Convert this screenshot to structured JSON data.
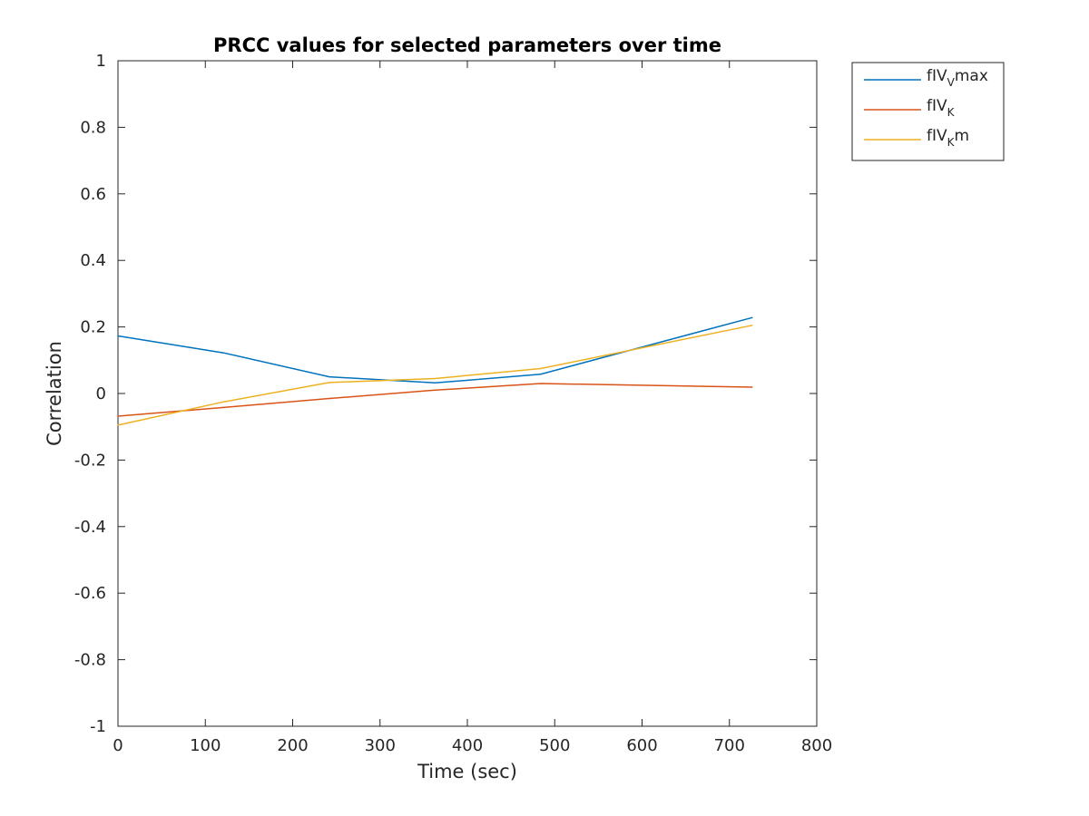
{
  "chart_data": {
    "type": "line",
    "title": "PRCC values for selected parameters over time",
    "xlabel": "Time (sec)",
    "ylabel": "Correlation",
    "xlim": [
      0,
      800
    ],
    "ylim": [
      -1,
      1
    ],
    "xticks": [
      0,
      100,
      200,
      300,
      400,
      500,
      600,
      700,
      800
    ],
    "yticks": [
      -1,
      -0.8,
      -0.6,
      -0.4,
      -0.2,
      0,
      0.2,
      0.4,
      0.6,
      0.8,
      1
    ],
    "x": [
      0,
      121,
      242,
      363,
      484,
      726
    ],
    "grid": false,
    "legend_position": "outside top-right",
    "series": [
      {
        "name": "fIVVmax",
        "label_main": "fIV",
        "label_sub": "V",
        "label_suffix": "max",
        "color": "#0072BD",
        "values": [
          0.173,
          0.122,
          0.05,
          0.032,
          0.058,
          0.228
        ]
      },
      {
        "name": "fIVK",
        "label_main": "fIV",
        "label_sub": "K",
        "label_suffix": "",
        "color": "#D95319",
        "values": [
          -0.068,
          -0.042,
          -0.015,
          0.01,
          0.03,
          0.019
        ]
      },
      {
        "name": "fIVKm",
        "label_main": "fIV",
        "label_sub": "K",
        "label_suffix": "m",
        "color": "#EDB120",
        "values": [
          -0.095,
          -0.025,
          0.033,
          0.045,
          0.075,
          0.205
        ]
      }
    ]
  }
}
